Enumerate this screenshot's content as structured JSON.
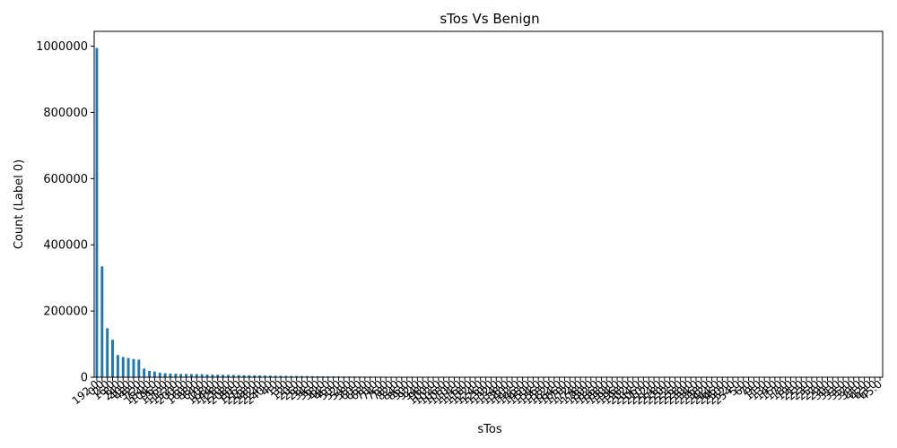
{
  "chart_data": {
    "type": "bar",
    "title": "sTos Vs Benign",
    "xlabel": "sTos",
    "ylabel": "Count (Label 0)",
    "ylim": [
      0,
      1045000
    ],
    "yticks": [
      0,
      200000,
      400000,
      600000,
      800000,
      1000000
    ],
    "ytick_labels": [
      "0",
      "200000",
      "400000",
      "600000",
      "800000",
      "1000000"
    ],
    "grid": false,
    "legend": "none",
    "bar_color": "#1f77b4",
    "categories": [
      "192.0",
      "0.0",
      "2.0",
      "16.0",
      "8.0",
      "24.0",
      "40.0",
      "48.0",
      "32.0",
      "72.0",
      "184.0",
      "104.0",
      "96.0",
      "136.0",
      "112.0",
      "152.0",
      "200.0",
      "56.0",
      "160.0",
      "88.0",
      "64.0",
      "10.0",
      "168.0",
      "144.0",
      "128.0",
      "120.0",
      "208.0",
      "80.0",
      "176.0",
      "216.0",
      "248.0",
      "232.0",
      "224.0",
      "240.0",
      "4.0",
      "1.0",
      "3.0",
      "12.0",
      "20.0",
      "26.0",
      "28.0",
      "34.0",
      "36.0",
      "38.0",
      "44.0",
      "46.0",
      "50.0",
      "52.0",
      "54.0",
      "58.0",
      "60.0",
      "66.0",
      "68.0",
      "70.0",
      "74.0",
      "76.0",
      "78.0",
      "82.0",
      "84.0",
      "86.0",
      "90.0",
      "92.0",
      "94.0",
      "98.0",
      "100.0",
      "102.0",
      "106.0",
      "108.0",
      "110.0",
      "114.0",
      "116.0",
      "118.0",
      "122.0",
      "124.0",
      "126.0",
      "130.0",
      "132.0",
      "134.0",
      "138.0",
      "140.0",
      "142.0",
      "146.0",
      "148.0",
      "150.0",
      "154.0",
      "156.0",
      "158.0",
      "162.0",
      "164.0",
      "166.0",
      "170.0",
      "172.0",
      "174.0",
      "178.0",
      "180.0",
      "182.0",
      "186.0",
      "188.0",
      "190.0",
      "194.0",
      "196.0",
      "198.0",
      "202.0",
      "204.0",
      "206.0",
      "210.0",
      "212.0",
      "214.0",
      "218.0",
      "220.0",
      "222.0",
      "226.0",
      "228.0",
      "230.0",
      "234.0",
      "236.0",
      "238.0",
      "242.0",
      "244.0",
      "246.0",
      "250.0",
      "252.0",
      "254.0",
      "5.0",
      "6.0",
      "7.0",
      "9.0",
      "11.0",
      "13.0",
      "14.0",
      "15.0",
      "17.0",
      "18.0",
      "19.0",
      "21.0",
      "22.0",
      "23.0",
      "25.0",
      "27.0",
      "29.0",
      "30.0",
      "31.0",
      "33.0",
      "35.0",
      "37.0",
      "39.0",
      "41.0",
      "42.0",
      "43.0",
      "45.0"
    ],
    "values": [
      995000,
      335000,
      148000,
      113000,
      67000,
      61000,
      58000,
      55000,
      53000,
      26000,
      19000,
      17000,
      14000,
      12000,
      11000,
      10500,
      10000,
      9800,
      9500,
      9200,
      9000,
      8500,
      8000,
      7700,
      7400,
      7100,
      6800,
      6500,
      6200,
      5900,
      5600,
      5300,
      5000,
      4700,
      4500,
      4300,
      4100,
      3900,
      3700,
      3500,
      3300,
      3100,
      2900,
      2700,
      2500,
      2400,
      2300,
      2200,
      2100,
      2000,
      1900,
      1800,
      1700,
      1600,
      1500,
      1400,
      1300,
      1200,
      1100,
      1000,
      950,
      900,
      850,
      800,
      750,
      700,
      650,
      600,
      550,
      500,
      470,
      440,
      410,
      380,
      350,
      320,
      300,
      280,
      260,
      240,
      220,
      200,
      190,
      180,
      170,
      160,
      150,
      140,
      130,
      120,
      110,
      100,
      95,
      90,
      85,
      80,
      75,
      70,
      65,
      60,
      55,
      50,
      48,
      46,
      44,
      42,
      40,
      38,
      36,
      34,
      32,
      30,
      28,
      26,
      24,
      22,
      20,
      18,
      16,
      15,
      14,
      13,
      12,
      11,
      10,
      9,
      9,
      8,
      8,
      7,
      7,
      6,
      6,
      5,
      5,
      4,
      4,
      4,
      3,
      3,
      3,
      3,
      2,
      2,
      2,
      2,
      2,
      1,
      1,
      1
    ]
  }
}
